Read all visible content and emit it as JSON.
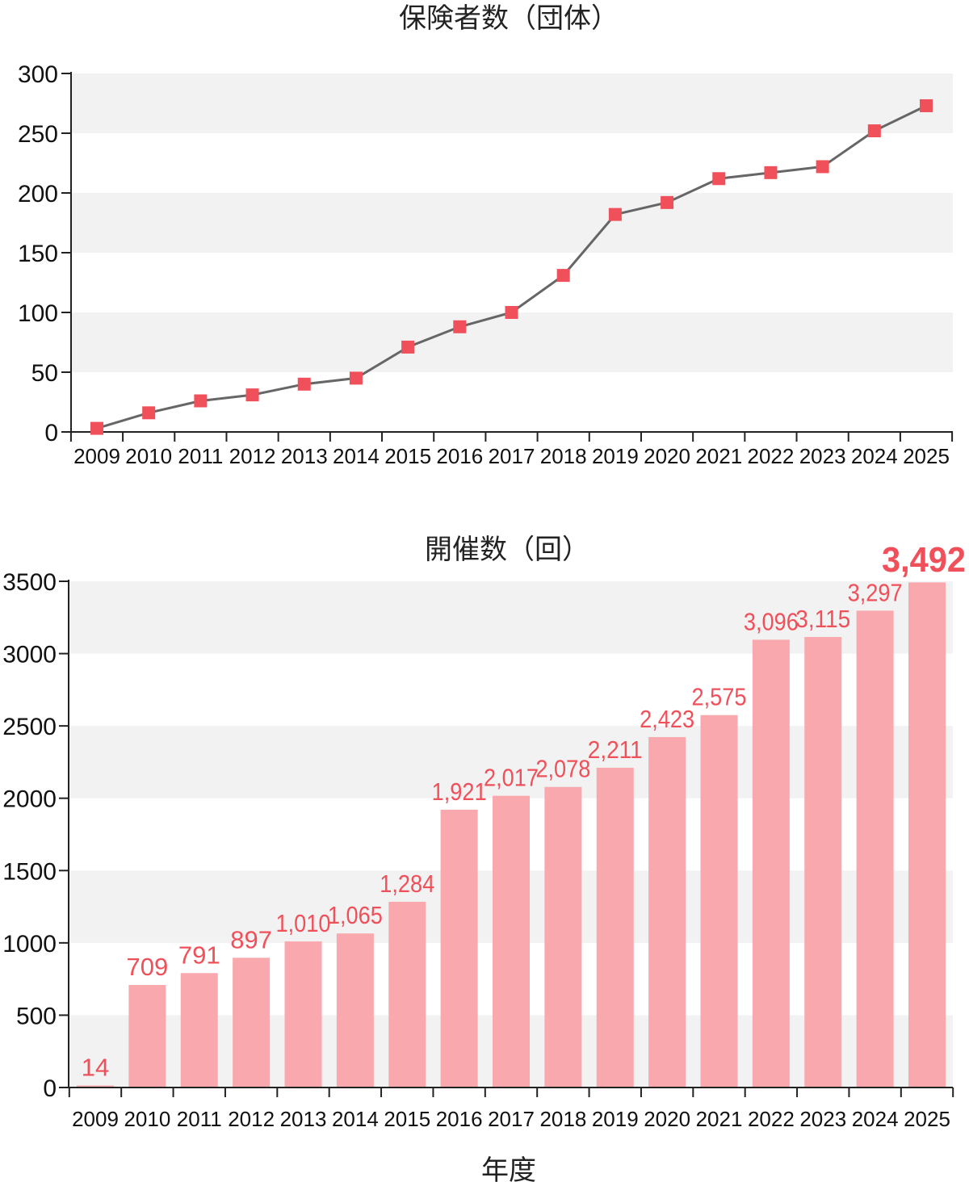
{
  "chart_data": [
    {
      "type": "line",
      "title": "保険者数（団体）",
      "xlabel": "",
      "ylabel": "",
      "categories": [
        "2009",
        "2010",
        "2011",
        "2012",
        "2013",
        "2014",
        "2015",
        "2016",
        "2017",
        "2018",
        "2019",
        "2020",
        "2021",
        "2022",
        "2023",
        "2024",
        "2025"
      ],
      "series": [
        {
          "values": [
            3,
            16,
            26,
            31,
            40,
            45,
            71,
            88,
            100,
            131,
            182,
            192,
            212,
            217,
            222,
            252,
            273
          ]
        }
      ],
      "ylim": [
        0,
        300
      ],
      "yticks": [
        0,
        50,
        100,
        150,
        200,
        250,
        300
      ],
      "grid": "alternating horizontal bands",
      "colors": {
        "line": "#666666",
        "marker": "#f0505a",
        "band": "#f2f2f2"
      }
    },
    {
      "type": "bar",
      "title": "開催数（回）",
      "xlabel": "年度",
      "ylabel": "",
      "categories": [
        "2009",
        "2010",
        "2011",
        "2012",
        "2013",
        "2014",
        "2015",
        "2016",
        "2017",
        "2018",
        "2019",
        "2020",
        "2021",
        "2022",
        "2023",
        "2024",
        "2025"
      ],
      "series": [
        {
          "values": [
            14,
            709,
            791,
            897,
            1010,
            1065,
            1284,
            1921,
            2017,
            2078,
            2211,
            2423,
            2575,
            3096,
            3115,
            3297,
            3492
          ]
        }
      ],
      "data_labels": [
        "14",
        "709",
        "791",
        "897",
        "1,010",
        "1,065",
        "1,284",
        "1,921",
        "2,017",
        "2,078",
        "2,211",
        "2,423",
        "2,575",
        "3,096",
        "3,115",
        "3,297",
        "3,492"
      ],
      "ylim": [
        0,
        3500
      ],
      "yticks": [
        0,
        500,
        1000,
        1500,
        2000,
        2500,
        3000,
        3500
      ],
      "grid": "alternating horizontal bands",
      "colors": {
        "bar": "#f9a9ad",
        "label": "#f0505a",
        "band": "#f2f2f2"
      }
    }
  ]
}
